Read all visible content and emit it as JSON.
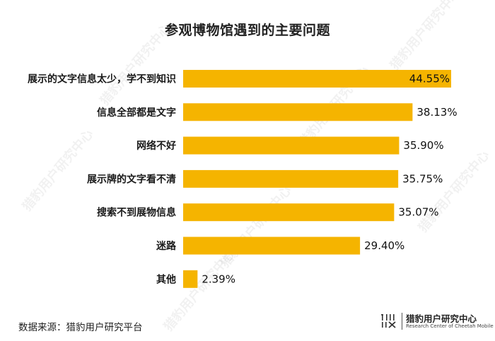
{
  "chart_data": {
    "type": "bar",
    "orientation": "horizontal",
    "title": "参观博物馆遇到的主要问题",
    "categories": [
      "展示的文字信息太少，学不到知识",
      "信息全部都是文字",
      "网络不好",
      "展示牌的文字看不清",
      "搜索不到展物信息",
      "迷路",
      "其他"
    ],
    "values": [
      44.55,
      38.13,
      35.9,
      35.75,
      35.07,
      29.4,
      2.39
    ],
    "value_labels": [
      "44.55%",
      "38.13%",
      "35.90%",
      "35.75%",
      "35.07%",
      "29.40%",
      "2.39%"
    ],
    "unit": "%",
    "xlim": [
      0,
      44.55
    ],
    "bar_color": "#F5B400",
    "grid": false,
    "legend": "none"
  },
  "source_note": "数据来源：猎豹用户研究平台",
  "brand": {
    "name": "猎豹用户研究中心",
    "subtitle": "Research Center of Cheetah Mobile"
  },
  "watermark": {
    "text": "猎豹用户研究中心",
    "subtitle": "Research Center of Cheetah Mobile"
  }
}
